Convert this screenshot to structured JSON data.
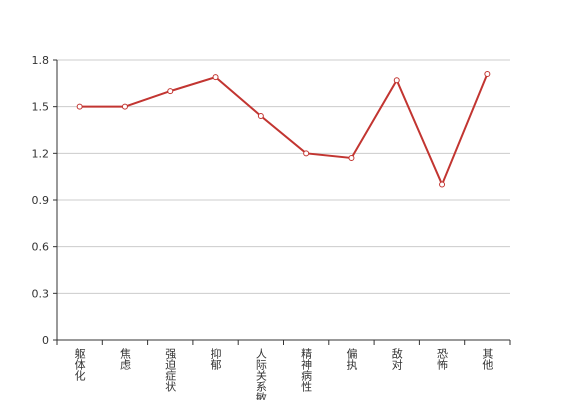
{
  "chart_data": {
    "type": "line",
    "categories": [
      "躯体化",
      "焦虑",
      "强迫症状",
      "抑郁",
      "人际关系敏感",
      "精神病性",
      "偏执",
      "敌对",
      "恐怖",
      "其他"
    ],
    "series": [
      {
        "color": "#c23531",
        "values": [
          1.5,
          1.5,
          1.6,
          1.69,
          1.44,
          1.2,
          1.17,
          1.67,
          1.0,
          1.71
        ]
      }
    ],
    "ylim": [
      0,
      1.8
    ],
    "yticks": [
      0,
      0.3,
      0.6,
      0.9,
      1.2,
      1.5,
      1.8
    ],
    "grid": true
  }
}
